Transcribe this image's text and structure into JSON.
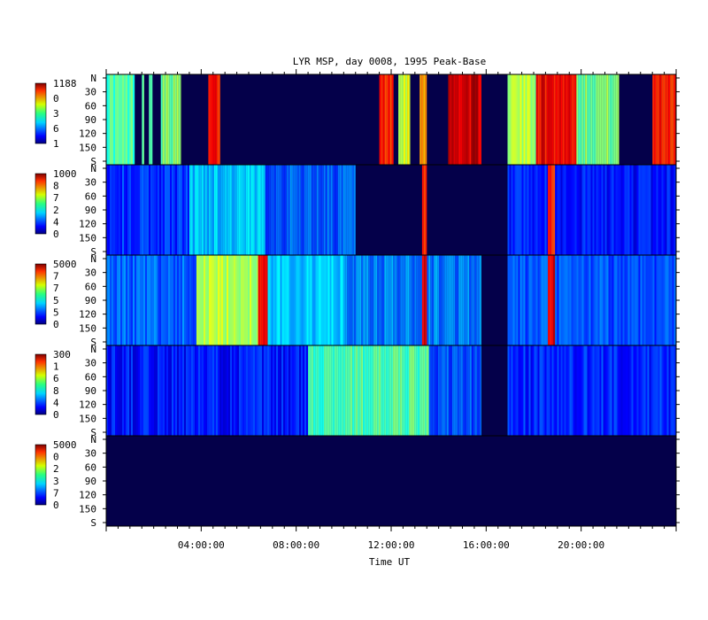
{
  "chart_data": {
    "type": "heatmap",
    "title": "LYR MSP, day 0008, 1995 Peak-Base",
    "xlabel": "Time UT",
    "x_ticks": [
      "04:00:00",
      "08:00:00",
      "12:00:00",
      "16:00:00",
      "20:00:00"
    ],
    "xlim_hours": [
      0,
      24
    ],
    "y_ticks": [
      "N",
      "30",
      "60",
      "90",
      "120",
      "150",
      "S"
    ],
    "ylim_deg": [
      0,
      180
    ],
    "data_gap_hours": [
      15.8,
      16.9
    ],
    "panels": [
      {
        "colorbar_max": "1188",
        "colorbar_labels": [
          "0",
          "3",
          "6"
        ],
        "colorbar_min": "1",
        "regions": [
          {
            "from": 0.0,
            "to": 1.2,
            "level": 0.45
          },
          {
            "from": 1.5,
            "to": 1.6,
            "level": 0.5
          },
          {
            "from": 1.8,
            "to": 1.95,
            "level": 0.5
          },
          {
            "from": 2.3,
            "to": 3.15,
            "level": 0.5
          },
          {
            "from": 4.3,
            "to": 4.8,
            "level": 0.85
          },
          {
            "from": 11.5,
            "to": 12.1,
            "level": 0.85
          },
          {
            "from": 12.3,
            "to": 12.8,
            "level": 0.6
          },
          {
            "from": 13.2,
            "to": 13.5,
            "level": 0.75
          },
          {
            "from": 14.4,
            "to": 15.8,
            "level": 0.92
          },
          {
            "from": 16.9,
            "to": 18.1,
            "level": 0.55
          },
          {
            "from": 18.1,
            "to": 19.8,
            "level": 0.88
          },
          {
            "from": 19.8,
            "to": 21.6,
            "level": 0.5
          },
          {
            "from": 23.0,
            "to": 24.0,
            "level": 0.85
          }
        ]
      },
      {
        "colorbar_max": "1000",
        "colorbar_labels": [
          "8",
          "7",
          "2",
          "4"
        ],
        "colorbar_min": "0",
        "regions": [
          {
            "from": 0.0,
            "to": 3.5,
            "level": 0.17
          },
          {
            "from": 3.5,
            "to": 6.7,
            "level": 0.32
          },
          {
            "from": 6.7,
            "to": 10.5,
            "level": 0.22
          },
          {
            "from": 13.3,
            "to": 13.5,
            "level": 0.82
          },
          {
            "from": 16.9,
            "to": 24.0,
            "level": 0.14
          },
          {
            "from": 18.6,
            "to": 18.9,
            "level": 0.85
          }
        ]
      },
      {
        "colorbar_max": "5000",
        "colorbar_labels": [
          "7",
          "7",
          "5",
          "5"
        ],
        "colorbar_min": "0",
        "regions": [
          {
            "from": 0.0,
            "to": 3.8,
            "level": 0.22
          },
          {
            "from": 3.8,
            "to": 6.4,
            "level": 0.55
          },
          {
            "from": 6.4,
            "to": 6.8,
            "level": 0.85
          },
          {
            "from": 6.8,
            "to": 10.0,
            "level": 0.32
          },
          {
            "from": 10.0,
            "to": 15.8,
            "level": 0.25
          },
          {
            "from": 13.3,
            "to": 13.5,
            "level": 0.88
          },
          {
            "from": 16.9,
            "to": 24.0,
            "level": 0.2
          },
          {
            "from": 18.6,
            "to": 18.9,
            "level": 0.9
          }
        ]
      },
      {
        "colorbar_max": "300",
        "colorbar_labels": [
          "1",
          "6",
          "8",
          "4"
        ],
        "colorbar_min": "0",
        "regions": [
          {
            "from": 0.0,
            "to": 8.5,
            "level": 0.14
          },
          {
            "from": 8.5,
            "to": 13.6,
            "level": 0.45
          },
          {
            "from": 13.6,
            "to": 15.8,
            "level": 0.2
          },
          {
            "from": 16.9,
            "to": 24.0,
            "level": 0.16
          }
        ]
      },
      {
        "colorbar_max": "5000",
        "colorbar_labels": [
          "0",
          "2",
          "3",
          "7"
        ],
        "colorbar_min": "0",
        "regions": []
      }
    ]
  }
}
